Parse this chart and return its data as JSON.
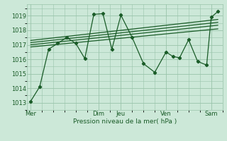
{
  "bg_color": "#cce8d8",
  "grid_color": "#99c4aa",
  "line_color": "#1a5c28",
  "tick_label_color": "#1a5c28",
  "xlabel": "Pression niveau de la mer( hPa )",
  "ylim": [
    1012.5,
    1019.8
  ],
  "yticks": [
    1013,
    1014,
    1015,
    1016,
    1017,
    1018,
    1019
  ],
  "xlim": [
    -0.15,
    8.5
  ],
  "xtick_positions": [
    0,
    3.0,
    4.0,
    6.0,
    8.0
  ],
  "xtick_labels": [
    "Mer",
    "Dim",
    "Jeu",
    "Ven",
    "Sam"
  ],
  "series1_x": [
    0.0,
    0.4,
    0.8,
    1.2,
    1.6,
    2.0,
    2.4,
    2.8,
    3.2,
    3.6,
    4.0,
    4.5,
    5.0,
    5.5,
    6.0,
    6.3,
    6.6,
    7.0,
    7.4,
    7.8,
    8.0,
    8.3
  ],
  "series1_y": [
    1013.1,
    1014.1,
    1016.7,
    1017.1,
    1017.5,
    1017.1,
    1016.05,
    1019.1,
    1019.15,
    1016.7,
    1019.05,
    1017.5,
    1015.7,
    1015.1,
    1016.5,
    1016.2,
    1016.1,
    1017.35,
    1015.85,
    1015.6,
    1018.9,
    1019.3
  ],
  "trend1_x": [
    0.0,
    8.3
  ],
  "trend1_y": [
    1016.85,
    1018.1
  ],
  "trend2_x": [
    0.0,
    8.3
  ],
  "trend2_y": [
    1017.0,
    1018.35
  ],
  "trend3_x": [
    0.0,
    8.3
  ],
  "trend3_y": [
    1017.15,
    1018.55
  ],
  "trend4_x": [
    0.0,
    8.3
  ],
  "trend4_y": [
    1017.3,
    1018.75
  ],
  "figsize": [
    3.2,
    2.0
  ],
  "dpi": 100
}
